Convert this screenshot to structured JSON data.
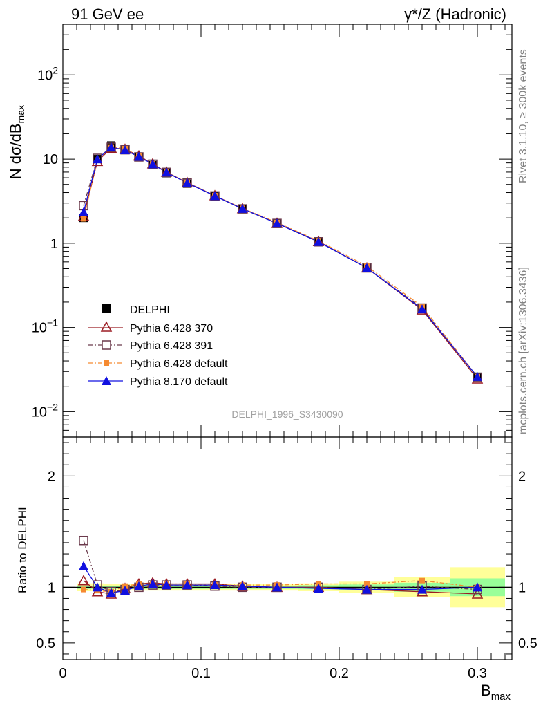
{
  "header": {
    "left": "91 GeV ee",
    "right": "γ*/Z (Hadronic)"
  },
  "side": {
    "rivet": "Rivet 3.1.10, ≥ 300k events",
    "mcplots": "mcplots.cern.ch [arXiv:1306.3436]"
  },
  "analysis_label": "DELPHI_1996_S3430090",
  "axes": {
    "ylabel_main": "N dσ/dB",
    "ylabel_main_sub": "max",
    "ylabel_ratio": "Ratio to DELPHI",
    "xlabel": "B",
    "xlabel_sub": "max"
  },
  "legend": [
    "DELPHI",
    "Pythia 6.428 370",
    "Pythia 6.428 391",
    "Pythia 6.428 default",
    "Pythia 8.170 default"
  ],
  "colors": {
    "data": "#000000",
    "p370": "#9b1c23",
    "p391": "#6b3a4c",
    "pdefault": "#f58a31",
    "p8": "#1010e0",
    "band_inner": "#99ff99",
    "band_outer": "#ffff99"
  },
  "chart_data": [
    {
      "type": "line",
      "panel": "main",
      "ylog": true,
      "xlim": [
        0,
        0.325
      ],
      "ylim": [
        0.005,
        400
      ],
      "x_ticks": [
        "0",
        "0.1",
        "0.2",
        "0.3"
      ],
      "y_ticks": [
        "10^-2",
        "10^-1",
        "1",
        "10",
        "10^2"
      ],
      "x": [
        0.015,
        0.025,
        0.035,
        0.045,
        0.055,
        0.065,
        0.075,
        0.09,
        0.11,
        0.13,
        0.155,
        0.185,
        0.22,
        0.26,
        0.3
      ],
      "series": [
        {
          "name": "DELPHI",
          "values": [
            2.0,
            10.0,
            14.5,
            13.2,
            10.6,
            8.5,
            6.8,
            5.1,
            3.6,
            2.55,
            1.72,
            1.04,
            0.52,
            0.168,
            0.026
          ]
        },
        {
          "name": "Pythia 6.428 370",
          "values": [
            2.1,
            9.4,
            13.5,
            13.1,
            10.9,
            8.8,
            7.0,
            5.25,
            3.68,
            2.58,
            1.73,
            1.05,
            0.51,
            0.162,
            0.0245
          ]
        },
        {
          "name": "Pythia 6.428 391",
          "values": [
            2.8,
            10.2,
            13.8,
            12.9,
            10.6,
            8.7,
            6.95,
            5.2,
            3.65,
            2.56,
            1.72,
            1.04,
            0.51,
            0.17,
            0.0255
          ]
        },
        {
          "name": "Pythia 6.428 default",
          "values": [
            1.95,
            9.7,
            13.9,
            13.3,
            10.9,
            8.75,
            7.0,
            5.25,
            3.67,
            2.6,
            1.76,
            1.07,
            0.535,
            0.177,
            0.026
          ]
        },
        {
          "name": "Pythia 8.170 default",
          "values": [
            2.35,
            10.0,
            13.8,
            12.8,
            10.7,
            8.7,
            6.95,
            5.2,
            3.65,
            2.57,
            1.72,
            1.04,
            0.51,
            0.165,
            0.026
          ]
        }
      ]
    },
    {
      "type": "line",
      "panel": "ratio",
      "xlim": [
        0,
        0.325
      ],
      "ylim": [
        0.35,
        2.35
      ],
      "y_ticks": [
        "0.5",
        "1",
        "2"
      ],
      "x": [
        0.015,
        0.025,
        0.035,
        0.045,
        0.055,
        0.065,
        0.075,
        0.09,
        0.11,
        0.13,
        0.155,
        0.185,
        0.22,
        0.26,
        0.3
      ],
      "bin_edges": [
        0.01,
        0.02,
        0.03,
        0.04,
        0.05,
        0.06,
        0.07,
        0.08,
        0.1,
        0.12,
        0.14,
        0.17,
        0.2,
        0.24,
        0.28,
        0.32
      ],
      "band_inner": [
        0.015,
        0.015,
        0.015,
        0.015,
        0.015,
        0.015,
        0.015,
        0.015,
        0.015,
        0.015,
        0.015,
        0.018,
        0.025,
        0.04,
        0.08
      ],
      "band_outer": [
        0.035,
        0.035,
        0.03,
        0.03,
        0.03,
        0.03,
        0.03,
        0.03,
        0.03,
        0.03,
        0.03,
        0.035,
        0.05,
        0.09,
        0.18
      ],
      "series": [
        {
          "name": "Pythia 6.428 370",
          "values": [
            1.06,
            0.96,
            0.94,
            0.99,
            1.03,
            1.04,
            1.03,
            1.03,
            1.03,
            1.01,
            1.0,
            1.0,
            0.98,
            0.96,
            0.94
          ]
        },
        {
          "name": "Pythia 6.428 391",
          "values": [
            1.42,
            1.02,
            0.96,
            0.98,
            1.0,
            1.02,
            1.02,
            1.02,
            1.01,
            1.0,
            1.0,
            1.0,
            0.98,
            1.01,
            0.98
          ]
        },
        {
          "name": "Pythia 6.428 default",
          "values": [
            0.98,
            0.97,
            0.96,
            1.01,
            1.03,
            1.03,
            1.03,
            1.03,
            1.02,
            1.02,
            1.02,
            1.03,
            1.03,
            1.06,
            1.0
          ]
        },
        {
          "name": "Pythia 8.170 default",
          "values": [
            1.19,
            1.0,
            0.95,
            0.97,
            1.01,
            1.03,
            1.02,
            1.02,
            1.02,
            1.01,
            1.0,
            0.99,
            0.98,
            0.98,
            1.0
          ]
        }
      ]
    }
  ]
}
